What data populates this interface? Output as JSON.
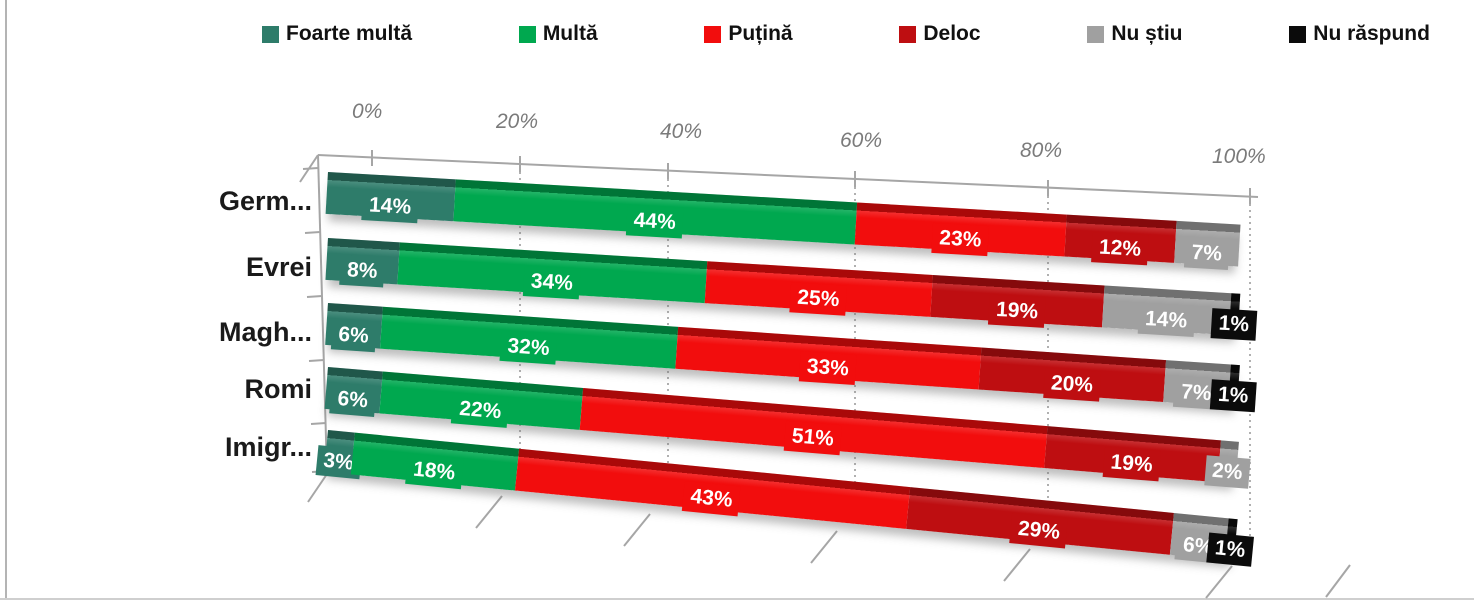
{
  "page": {
    "background": "#ffffff",
    "border_color": "#b4b4b4"
  },
  "legend": {
    "items": [
      {
        "label": "Foarte multă",
        "color": "#2E7C6A"
      },
      {
        "label": "Multă",
        "color": "#00A84F"
      },
      {
        "label": "Puțină",
        "color": "#F20D0D"
      },
      {
        "label": "Deloc",
        "color": "#BE0E11"
      },
      {
        "label": "Nu știu",
        "color": "#A0A0A0"
      },
      {
        "label": "Nu răspund",
        "color": "#0B0B0B"
      }
    ]
  },
  "chart_data": {
    "type": "bar",
    "variant": "3d-horizontal-stacked-100",
    "title": "",
    "categories": [
      "Germ...",
      "Evrei",
      "Magh...",
      "Romi",
      "Imigr..."
    ],
    "series": [
      {
        "name": "Foarte multă",
        "color": "#2E7C6A",
        "values": [
          14,
          8,
          6,
          6,
          3
        ]
      },
      {
        "name": "Multă",
        "color": "#00A84F",
        "values": [
          44,
          34,
          32,
          22,
          18
        ]
      },
      {
        "name": "Puțină",
        "color": "#F20D0D",
        "values": [
          23,
          25,
          33,
          51,
          43
        ]
      },
      {
        "name": "Deloc",
        "color": "#BE0E11",
        "values": [
          12,
          19,
          20,
          19,
          29
        ]
      },
      {
        "name": "Nu știu",
        "color": "#A0A0A0",
        "values": [
          7,
          14,
          7,
          2,
          6
        ]
      },
      {
        "name": "Nu răspund",
        "color": "#0B0B0B",
        "values": [
          0,
          1,
          1,
          0,
          1
        ]
      }
    ],
    "x_ticks": [
      "0%",
      "20%",
      "40%",
      "60%",
      "80%",
      "100%"
    ],
    "xlim": [
      0,
      100
    ],
    "value_suffix": "%",
    "legend_position": "top",
    "data_labels": true,
    "gridlines": "dashed-vertical"
  }
}
